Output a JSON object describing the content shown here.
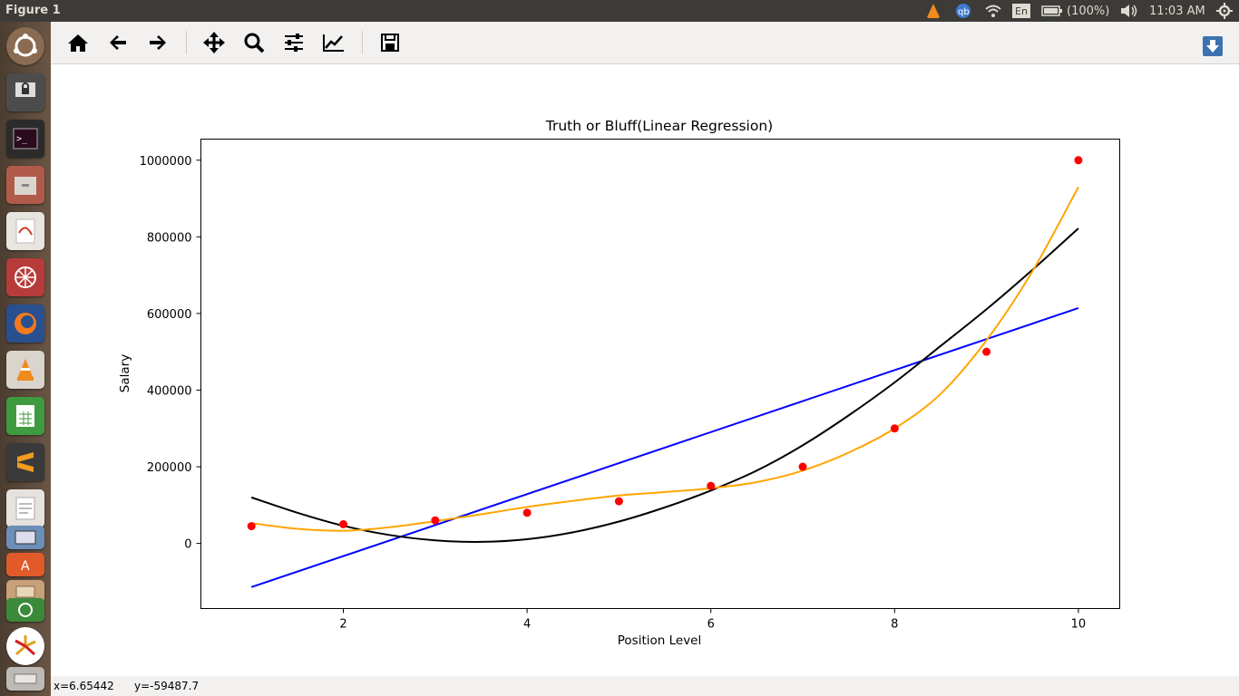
{
  "window": {
    "title": "Figure 1"
  },
  "top_panel": {
    "keyboard": "En",
    "battery": "(100%)",
    "clock": "11:03 AM"
  },
  "status": {
    "x": "x=6.65442",
    "y": "y=-59487.7"
  },
  "toolbar": {
    "buttons": [
      "home-icon",
      "back-icon",
      "forward-icon",
      "pan-icon",
      "zoom-icon",
      "configure-subplots-icon",
      "edit-axis-icon",
      "save-icon"
    ]
  },
  "chart_data": {
    "type": "scatter",
    "title": "Truth or Bluff(Linear Regression)",
    "xlabel": "Position Level",
    "ylabel": "Salary",
    "xlim": [
      0.45,
      10.45
    ],
    "ylim": [
      -170000,
      1055000
    ],
    "xticks": [
      2,
      4,
      6,
      8,
      10
    ],
    "yticks": [
      0,
      200000,
      400000,
      600000,
      800000,
      1000000
    ],
    "colors": {
      "points": "#ff0000",
      "linear": "#0000ff",
      "poly2": "#000000",
      "poly4": "#ffa500"
    },
    "points": {
      "x": [
        1,
        2,
        3,
        4,
        5,
        6,
        7,
        8,
        9,
        10
      ],
      "y": [
        45000,
        50000,
        60000,
        80000,
        110000,
        150000,
        200000,
        300000,
        500000,
        1000000
      ]
    },
    "series": [
      {
        "kind": "linear",
        "x": [
          1,
          10
        ],
        "y": [
          -114000,
          614000
        ]
      },
      {
        "kind": "poly2",
        "x": [
          1,
          1.5,
          2,
          2.5,
          3,
          3.5,
          4,
          4.5,
          5,
          5.5,
          6,
          6.5,
          7,
          7.5,
          8,
          8.5,
          9,
          9.5,
          10
        ],
        "y": [
          120000,
          80000,
          46000,
          22000,
          8000,
          4000,
          11000,
          29000,
          57000,
          94000,
          138000,
          190000,
          256000,
          334000,
          420000,
          515000,
          611000,
          714000,
          822000
        ]
      },
      {
        "kind": "poly4",
        "x": [
          1,
          1.5,
          2,
          2.5,
          3,
          3.5,
          4,
          4.5,
          5,
          5.5,
          6,
          6.5,
          7,
          7.5,
          8,
          8.5,
          9,
          9.5,
          10
        ],
        "y": [
          53000,
          38000,
          33000,
          42000,
          58000,
          76000,
          95000,
          111000,
          125000,
          134000,
          144000,
          160000,
          190000,
          237000,
          300000,
          390000,
          530000,
          710000,
          930000
        ]
      }
    ]
  }
}
